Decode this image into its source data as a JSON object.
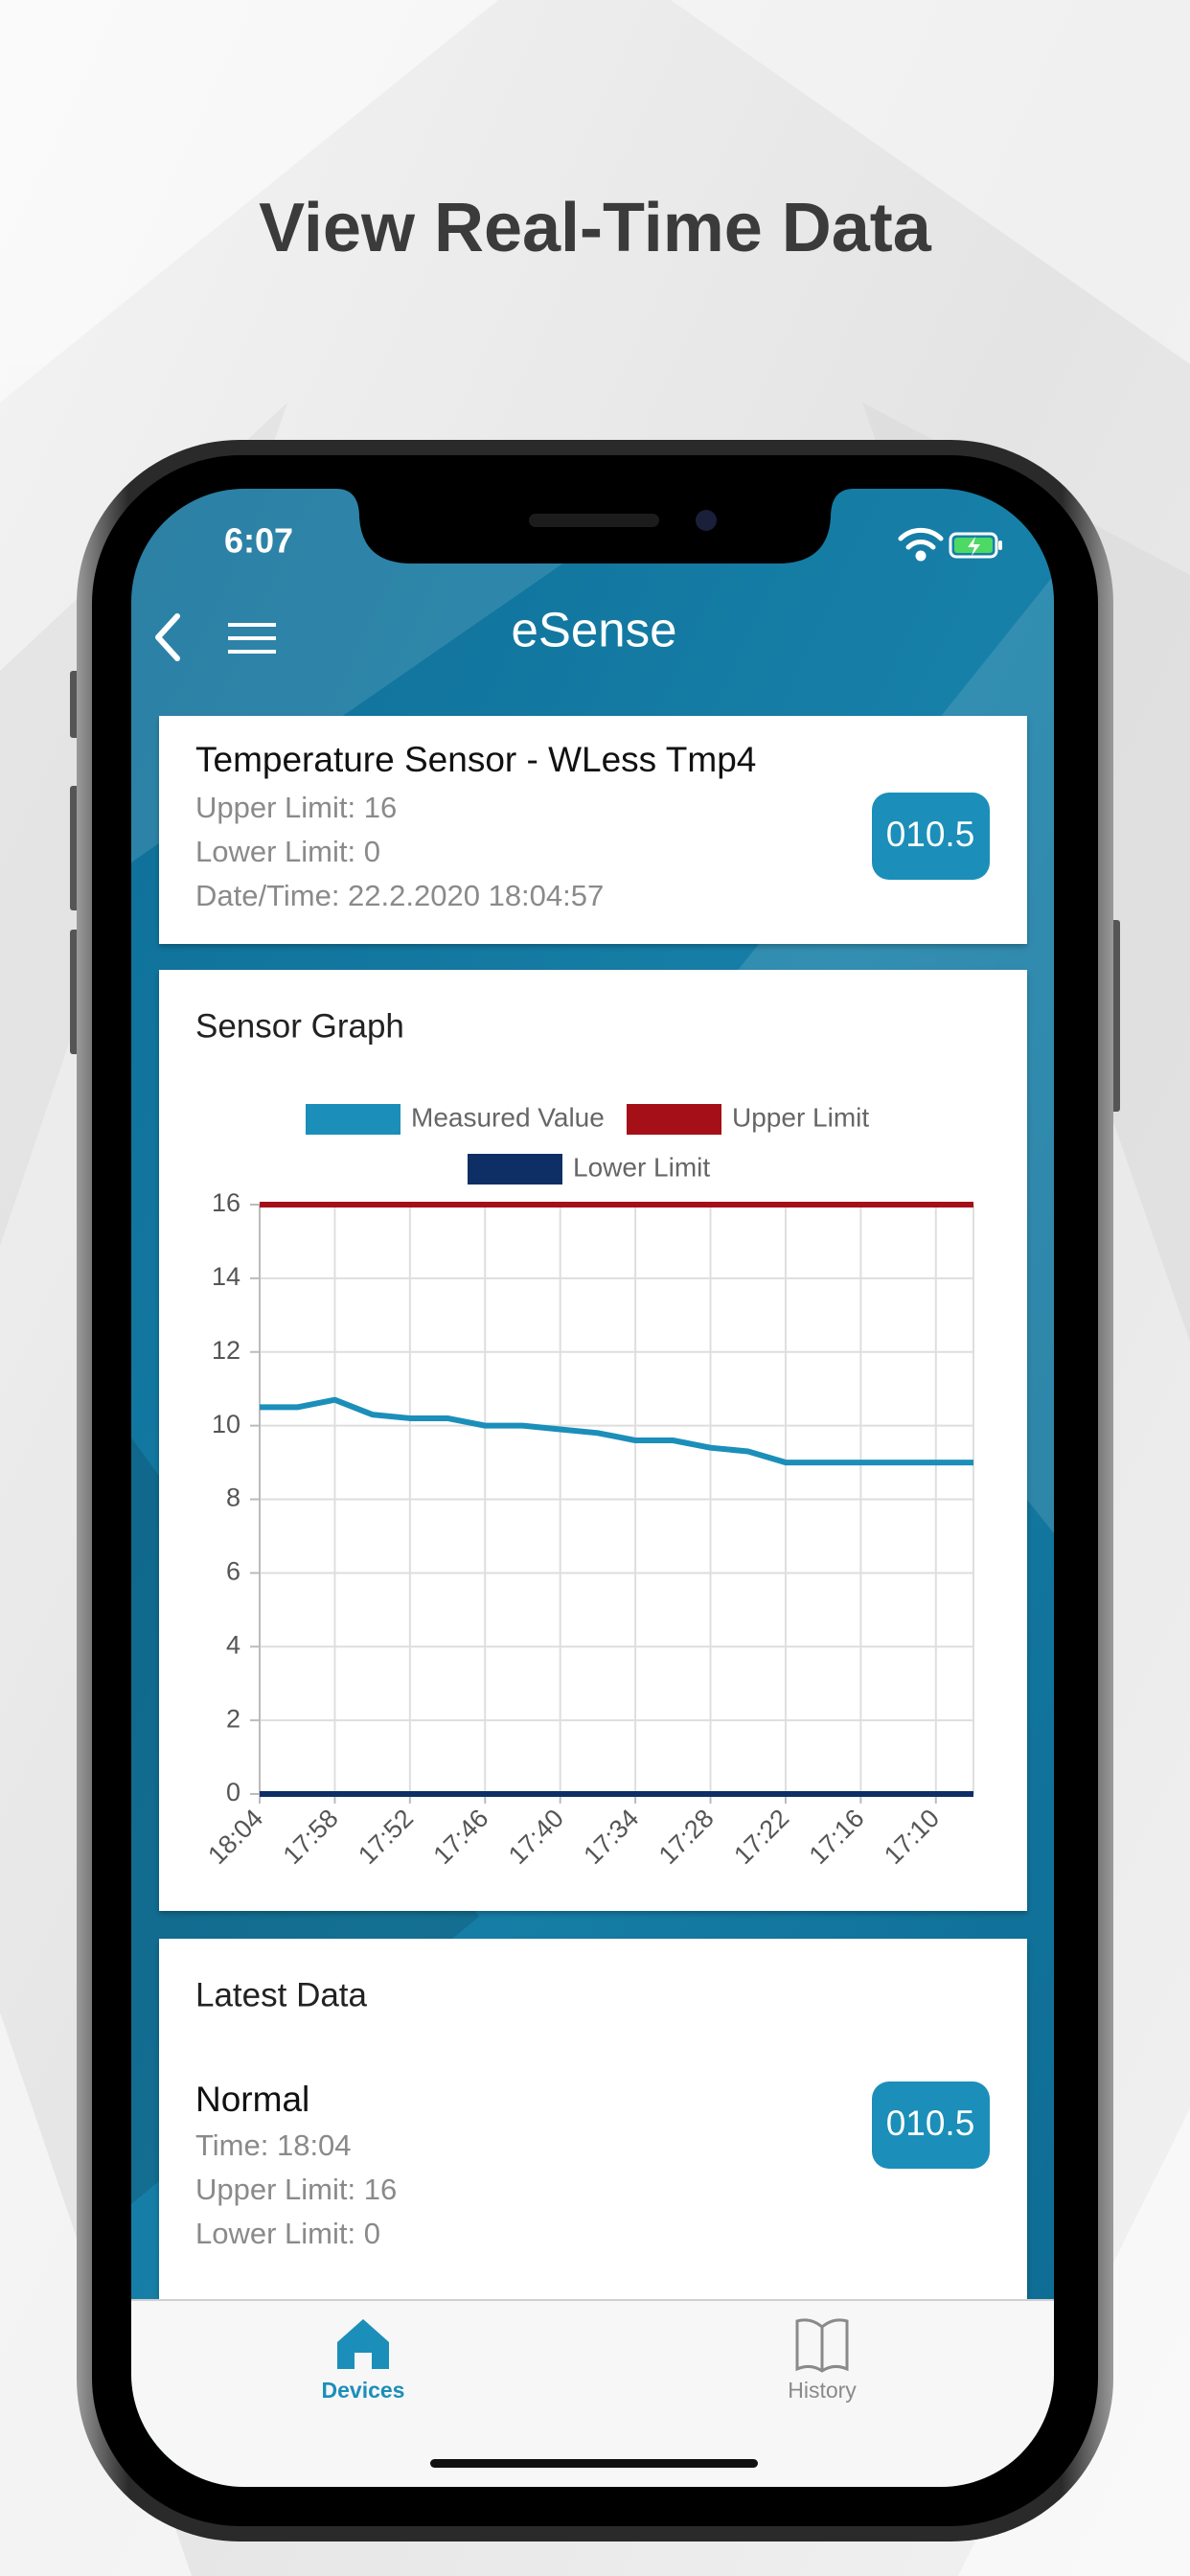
{
  "headline": "View Real-Time Data",
  "status_bar": {
    "time": "6:07"
  },
  "nav": {
    "title": "eSense"
  },
  "sensor_card": {
    "name": "Temperature Sensor - WLess Tmp4",
    "upper_limit": "Upper Limit: 16",
    "lower_limit": "Lower Limit: 0",
    "datetime": "Date/Time: 22.2.2020 18:04:57",
    "value": "010.5"
  },
  "graph_card": {
    "title": "Sensor Graph"
  },
  "chart_data": {
    "type": "line",
    "categories": [
      "18:04",
      null,
      "17:58",
      null,
      "17:52",
      null,
      "17:46",
      null,
      "17:40",
      null,
      "17:34",
      null,
      "17:28",
      null,
      "17:22",
      null,
      "17:16",
      null,
      "17:10",
      null
    ],
    "series": [
      {
        "name": "Measured Value",
        "color": "#1b8fb9",
        "values": [
          10.5,
          10.5,
          10.7,
          10.3,
          10.2,
          10.2,
          10.0,
          10.0,
          9.9,
          9.8,
          9.6,
          9.6,
          9.4,
          9.3,
          9.0,
          9.0,
          9.0,
          9.0,
          9.0,
          9.0
        ]
      },
      {
        "name": "Upper Limit",
        "color": "#a50f17",
        "values": [
          16,
          16,
          16,
          16,
          16,
          16,
          16,
          16,
          16,
          16,
          16,
          16,
          16,
          16,
          16,
          16,
          16,
          16,
          16,
          16
        ]
      },
      {
        "name": "Lower Limit",
        "color": "#0d2f66",
        "values": [
          0,
          0,
          0,
          0,
          0,
          0,
          0,
          0,
          0,
          0,
          0,
          0,
          0,
          0,
          0,
          0,
          0,
          0,
          0,
          0
        ]
      }
    ],
    "ylim": [
      0,
      16
    ],
    "yticks": [
      0,
      2,
      4,
      6,
      8,
      10,
      12,
      14,
      16
    ],
    "grid": true
  },
  "latest_card": {
    "title": "Latest Data",
    "status": "Normal",
    "time": "Time: 18:04",
    "upper_limit": "Upper Limit: 16",
    "lower_limit": "Lower Limit: 0",
    "value": "010.5"
  },
  "tab_bar": {
    "tabs": [
      "Devices",
      "History"
    ]
  }
}
